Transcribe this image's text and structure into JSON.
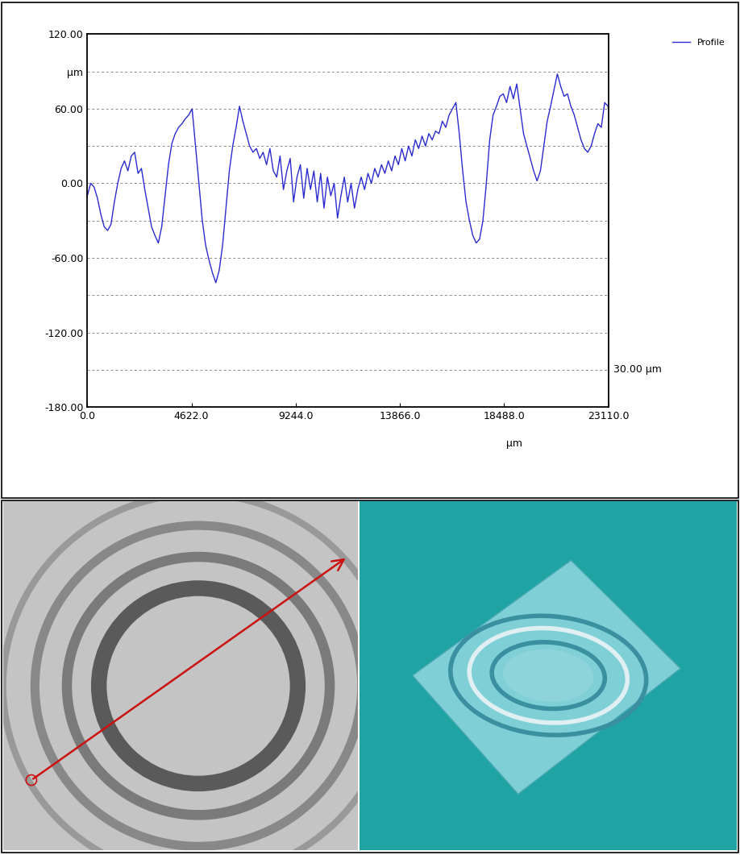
{
  "chart_data": {
    "type": "line",
    "x": [
      0,
      150,
      300,
      450,
      600,
      750,
      900,
      1050,
      1200,
      1350,
      1500,
      1650,
      1800,
      1950,
      2100,
      2250,
      2400,
      2550,
      2700,
      2850,
      3000,
      3150,
      3300,
      3450,
      3600,
      3750,
      3900,
      4050,
      4200,
      4350,
      4500,
      4650,
      4800,
      4950,
      5100,
      5250,
      5400,
      5550,
      5700,
      5850,
      6000,
      6150,
      6300,
      6450,
      6600,
      6750,
      6900,
      7050,
      7200,
      7350,
      7500,
      7650,
      7800,
      7950,
      8100,
      8250,
      8400,
      8550,
      8700,
      8850,
      9000,
      9150,
      9300,
      9450,
      9600,
      9750,
      9900,
      10050,
      10200,
      10350,
      10500,
      10650,
      10800,
      10950,
      11100,
      11250,
      11400,
      11550,
      11700,
      11850,
      12000,
      12150,
      12300,
      12450,
      12600,
      12750,
      12900,
      13050,
      13200,
      13350,
      13500,
      13650,
      13800,
      13950,
      14100,
      14250,
      14400,
      14550,
      14700,
      14850,
      15000,
      15150,
      15300,
      15450,
      15600,
      15750,
      15900,
      16050,
      16200,
      16350,
      16500,
      16650,
      16800,
      16950,
      17100,
      17250,
      17400,
      17550,
      17700,
      17850,
      18000,
      18150,
      18300,
      18450,
      18600,
      18750,
      18900,
      19050,
      19200,
      19350,
      19500,
      19650,
      19800,
      19950,
      20100,
      20250,
      20400,
      20550,
      20700,
      20850,
      21000,
      21150,
      21300,
      21450,
      21600,
      21750,
      21900,
      22050,
      22200,
      22350,
      22500,
      22650,
      22800,
      22950,
      23100,
      23110
    ],
    "series": [
      {
        "name": "Profile",
        "color": "#2b2bd0",
        "values": [
          -10,
          0,
          -3,
          -12,
          -25,
          -35,
          -38,
          -33,
          -15,
          0,
          12,
          18,
          10,
          22,
          25,
          8,
          12,
          -5,
          -20,
          -35,
          -42,
          -48,
          -35,
          -10,
          15,
          32,
          40,
          45,
          48,
          52,
          55,
          60,
          30,
          0,
          -30,
          -50,
          -62,
          -72,
          -80,
          -70,
          -50,
          -20,
          10,
          30,
          45,
          62,
          50,
          40,
          30,
          25,
          28,
          20,
          25,
          15,
          28,
          10,
          5,
          22,
          -5,
          10,
          20,
          -15,
          5,
          15,
          -12,
          12,
          -5,
          10,
          -15,
          8,
          -20,
          5,
          -10,
          0,
          -28,
          -10,
          5,
          -15,
          0,
          -20,
          -5,
          5,
          -5,
          8,
          0,
          12,
          5,
          15,
          8,
          18,
          10,
          22,
          15,
          28,
          18,
          30,
          22,
          35,
          28,
          38,
          30,
          40,
          35,
          42,
          40,
          50,
          45,
          55,
          60,
          65,
          40,
          10,
          -15,
          -30,
          -42,
          -48,
          -45,
          -30,
          0,
          35,
          55,
          62,
          70,
          72,
          65,
          78,
          68,
          80,
          60,
          40,
          30,
          20,
          10,
          2,
          10,
          30,
          50,
          62,
          75,
          88,
          78,
          70,
          72,
          62,
          55,
          45,
          35,
          28,
          25,
          30,
          40,
          48,
          45,
          65,
          62,
          60
        ]
      }
    ],
    "x_label": "μm",
    "xlim": [
      0,
      23110
    ],
    "xticks": [
      {
        "value": 0,
        "label": "0.0"
      },
      {
        "value": 4622,
        "label": "4622.0"
      },
      {
        "value": 9244,
        "label": "9244.0"
      },
      {
        "value": 13866,
        "label": "13866.0"
      },
      {
        "value": 18488,
        "label": "18488.0"
      },
      {
        "value": 23110,
        "label": "23110.0"
      }
    ],
    "ylim": [
      -180,
      120
    ],
    "yticks": [
      {
        "value": 120,
        "label": "120.00"
      },
      {
        "value": 90,
        "label": "μm"
      },
      {
        "value": 60,
        "label": "60.00"
      },
      {
        "value": 0,
        "label": "0.00"
      },
      {
        "value": -60,
        "label": "-60.00"
      },
      {
        "value": -120,
        "label": "-120.00"
      },
      {
        "value": -180,
        "label": "-180.00"
      }
    ],
    "grid_lines": [
      -150,
      -90,
      -30,
      30
    ],
    "annotation": "30.00 μm",
    "grid": true,
    "legend": "upper right"
  }
}
